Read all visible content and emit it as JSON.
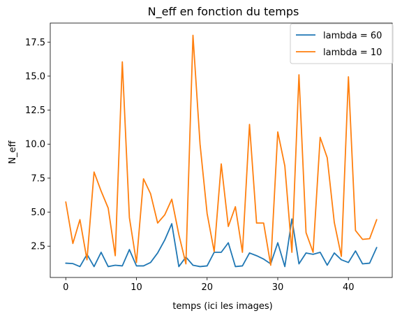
{
  "chart_data": {
    "type": "line",
    "title": "N_eff en fonction du temps",
    "xlabel": "temps (ici les images)",
    "ylabel": "N_eff",
    "xlim": [
      -2.2,
      46.2
    ],
    "ylim": [
      0.2,
      18.9
    ],
    "xticks": [
      0,
      10,
      20,
      30,
      40
    ],
    "xtick_labels": [
      "0",
      "10",
      "20",
      "30",
      "40"
    ],
    "yticks": [
      2.5,
      5.0,
      7.5,
      10.0,
      12.5,
      15.0,
      17.5
    ],
    "ytick_labels": [
      "2.5",
      "5.0",
      "7.5",
      "10.0",
      "12.5",
      "15.0",
      "17.5"
    ],
    "grid": false,
    "legend_position": "top-right",
    "series": [
      {
        "name": "lambda = 60",
        "color": "#1f77b4",
        "x": [
          0,
          1,
          2,
          3,
          4,
          5,
          6,
          7,
          8,
          9,
          10,
          11,
          12,
          13,
          14,
          15,
          16,
          17,
          18,
          19,
          20,
          21,
          22,
          23,
          24,
          25,
          26,
          27,
          28,
          29,
          30,
          31,
          32,
          33,
          34,
          35,
          36,
          37,
          38,
          39,
          40,
          41,
          42,
          43,
          44
        ],
        "values": [
          1.25,
          1.22,
          1.0,
          1.9,
          1.0,
          2.05,
          1.0,
          1.1,
          1.05,
          2.25,
          1.05,
          1.05,
          1.3,
          2.0,
          2.95,
          4.15,
          1.0,
          1.7,
          1.1,
          1.0,
          1.05,
          2.05,
          2.05,
          2.75,
          1.0,
          1.05,
          2.0,
          1.8,
          1.55,
          1.2,
          2.75,
          1.0,
          4.5,
          1.2,
          2.0,
          1.9,
          2.05,
          1.1,
          2.0,
          1.5,
          1.3,
          2.15,
          1.2,
          1.25,
          2.4
        ]
      },
      {
        "name": "lambda = 10",
        "color": "#ff7f0e",
        "x": [
          0,
          1,
          2,
          3,
          4,
          5,
          6,
          7,
          8,
          9,
          10,
          11,
          12,
          13,
          14,
          15,
          16,
          17,
          18,
          19,
          20,
          21,
          22,
          23,
          24,
          25,
          26,
          27,
          28,
          29,
          30,
          31,
          32,
          33,
          34,
          35,
          36,
          37,
          38,
          39,
          40,
          41,
          42,
          43,
          44
        ],
        "values": [
          5.75,
          2.7,
          4.45,
          1.5,
          7.95,
          6.55,
          5.3,
          1.8,
          16.05,
          4.6,
          1.3,
          7.45,
          6.35,
          4.2,
          4.8,
          5.95,
          3.35,
          1.2,
          18.0,
          10.0,
          4.9,
          2.1,
          8.55,
          3.95,
          5.4,
          2.05,
          11.45,
          4.2,
          4.2,
          1.1,
          10.9,
          8.4,
          2.05,
          15.1,
          3.5,
          2.05,
          10.5,
          9.0,
          4.25,
          1.75,
          14.95,
          3.65,
          3.0,
          3.05,
          4.45
        ]
      }
    ]
  }
}
